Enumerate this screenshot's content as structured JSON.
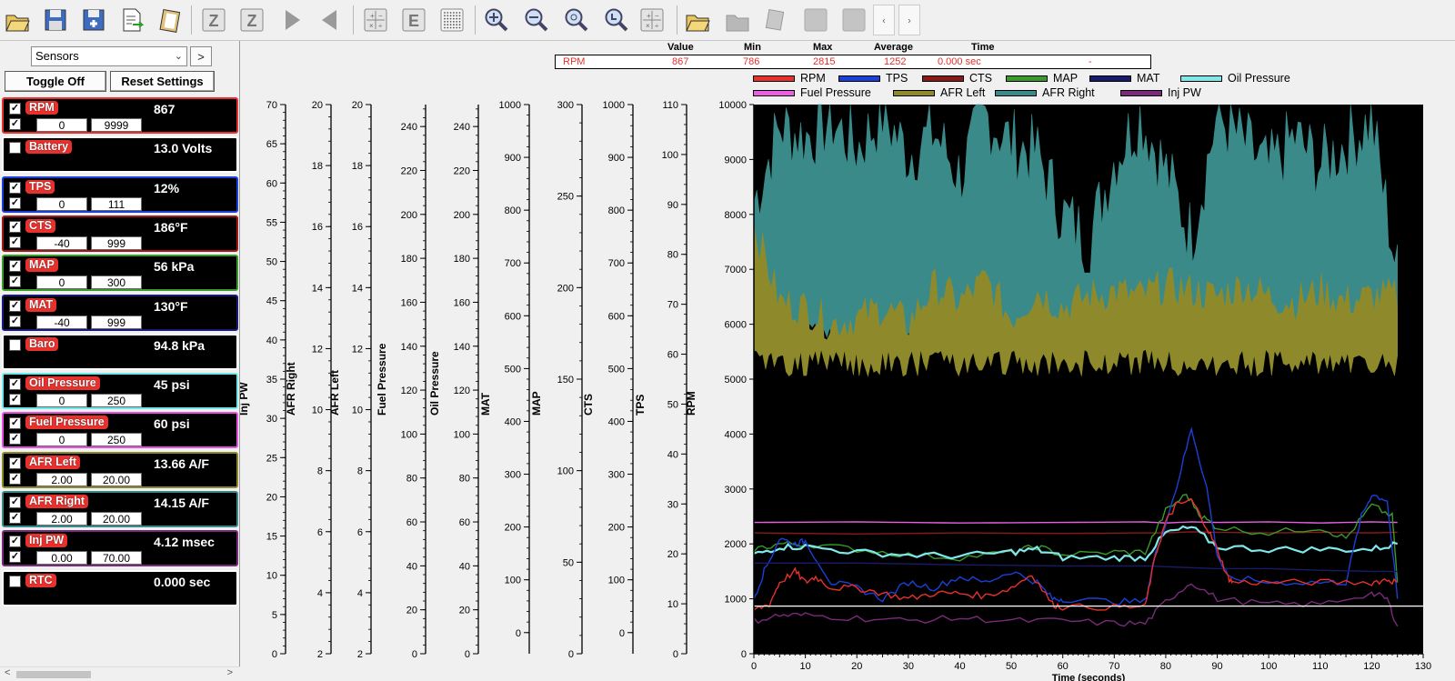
{
  "toolbar": {
    "buttons": [
      {
        "name": "open-folder-icon"
      },
      {
        "name": "save-icon"
      },
      {
        "name": "save-as-icon"
      },
      {
        "name": "export-icon"
      },
      {
        "name": "clipboard-icon"
      },
      {
        "name": "zoom-all-icon",
        "label": "Z"
      },
      {
        "name": "zoom-z-icon",
        "label": "Z"
      },
      {
        "name": "play-forward-icon"
      },
      {
        "name": "play-back-icon"
      },
      {
        "name": "calculator-icon"
      },
      {
        "name": "e-button-icon",
        "label": "E"
      },
      {
        "name": "dotted-grid-icon"
      },
      {
        "name": "zoom-in-icon"
      },
      {
        "name": "zoom-out-icon"
      },
      {
        "name": "zoom-reset-icon"
      },
      {
        "name": "zoom-lock-icon"
      },
      {
        "name": "table-icon"
      },
      {
        "name": "open-files-icon"
      },
      {
        "name": "disabled-folder-icon"
      },
      {
        "name": "disabled-copy-icon"
      },
      {
        "name": "disabled-square-icon"
      },
      {
        "name": "disabled-square2-icon"
      },
      {
        "name": "scroll-left-icon",
        "label": "‹"
      },
      {
        "name": "scroll-right-icon",
        "label": "›"
      }
    ]
  },
  "left_panel": {
    "select_value": "Sensors",
    "prev_label": "<",
    "next_label": ">",
    "toggle_off_label": "Toggle Off",
    "reset_settings_label": "Reset Settings",
    "sensors": [
      {
        "name": "RPM",
        "value": "867",
        "color": "#e8302c",
        "border": "#e8302c",
        "checked": true,
        "min": "0",
        "max": "9999"
      },
      {
        "name": "Battery",
        "value": "13.0 Volts",
        "color": "#e8302c",
        "border": "#ffffff",
        "checked": false
      },
      {
        "name": "TPS",
        "value": "12%",
        "color": "#e8302c",
        "border": "#1c3fd8",
        "checked": true,
        "min": "0",
        "max": "111"
      },
      {
        "name": "CTS",
        "value": "186°F",
        "color": "#e8302c",
        "border": "#a01818",
        "checked": true,
        "min": "-40",
        "max": "999"
      },
      {
        "name": "MAP",
        "value": "56 kPa",
        "color": "#e8302c",
        "border": "#3a9a2a",
        "checked": true,
        "min": "0",
        "max": "300"
      },
      {
        "name": "MAT",
        "value": "130°F",
        "color": "#e8302c",
        "border": "#1a1a7a",
        "checked": true,
        "min": "-40",
        "max": "999"
      },
      {
        "name": "Baro",
        "value": "94.8 kPa",
        "color": "#e8302c",
        "border": "#ffffff",
        "checked": false
      },
      {
        "name": "Oil Pressure",
        "value": "45 psi",
        "color": "#e8302c",
        "border": "#6ee8e8",
        "checked": true,
        "min": "0",
        "max": "250"
      },
      {
        "name": "Fuel Pressure",
        "value": "60 psi",
        "color": "#e8302c",
        "border": "#e850e0",
        "checked": true,
        "min": "0",
        "max": "250"
      },
      {
        "name": "AFR Left",
        "value": "13.66 A/F",
        "color": "#e8302c",
        "border": "#8e8a2c",
        "checked": true,
        "min": "2.00",
        "max": "20.00"
      },
      {
        "name": "AFR Right",
        "value": "14.15 A/F",
        "color": "#e8302c",
        "border": "#3a8a8a",
        "checked": true,
        "min": "2.00",
        "max": "20.00"
      },
      {
        "name": "Inj PW",
        "value": "4.12 msec",
        "color": "#e8302c",
        "border": "#7a2a7a",
        "checked": true,
        "min": "0.00",
        "max": "70.00"
      },
      {
        "name": "RTC",
        "value": "0.000 sec",
        "color": "#e8302c",
        "border": "#ffffff",
        "checked": false
      }
    ]
  },
  "stats": {
    "headers": {
      "value": "Value",
      "min": "Min",
      "max": "Max",
      "average": "Average",
      "time": "Time"
    },
    "row": {
      "name": "RPM",
      "value": "867",
      "min": "786",
      "max": "2815",
      "average": "1252",
      "time": "0.000 sec",
      "extra": "-"
    }
  },
  "legend": [
    {
      "label": "RPM",
      "color": "#e8302c"
    },
    {
      "label": "TPS",
      "color": "#1c3fd8"
    },
    {
      "label": "CTS",
      "color": "#8a1a1a"
    },
    {
      "label": "MAP",
      "color": "#3a9a2a"
    },
    {
      "label": "MAT",
      "color": "#1a1a6a"
    },
    {
      "label": "Oil Pressure",
      "color": "#7fe8e8"
    },
    {
      "label": "Fuel Pressure",
      "color": "#e860e0"
    },
    {
      "label": "AFR Left",
      "color": "#8e8a2c"
    },
    {
      "label": "AFR Right",
      "color": "#3a8a8a"
    },
    {
      "label": "Inj PW",
      "color": "#7a2a7a"
    }
  ],
  "chart_data": {
    "type": "line",
    "xlabel": "Time (seconds)",
    "xlim": [
      0,
      130
    ],
    "x_ticks": [
      "0",
      "10",
      "20",
      "30",
      "40",
      "50",
      "60",
      "70",
      "80",
      "90",
      "100",
      "110",
      "120",
      "130"
    ],
    "ylim": [
      0,
      10000
    ],
    "y_ticks": [
      "0",
      "1000",
      "2000",
      "3000",
      "4000",
      "5000",
      "6000",
      "7000",
      "8000",
      "9000",
      "10000"
    ],
    "axes": [
      {
        "label": "Inj PW",
        "min": 0,
        "max": 70,
        "ticks": [
          "0",
          "5",
          "10",
          "15",
          "20",
          "25",
          "30",
          "35",
          "40",
          "45",
          "50",
          "55",
          "60",
          "65",
          "70"
        ]
      },
      {
        "label": "AFR Right",
        "min": 2,
        "max": 20,
        "ticks": [
          "2",
          "4",
          "6",
          "8",
          "10",
          "12",
          "14",
          "16",
          "18",
          "20"
        ]
      },
      {
        "label": "AFR Left",
        "min": 2,
        "max": 20,
        "ticks": [
          "2",
          "4",
          "6",
          "8",
          "10",
          "12",
          "14",
          "16",
          "18",
          "20"
        ]
      },
      {
        "label": "Fuel Pressure",
        "min": 0,
        "max": 250,
        "ticks": [
          "0",
          "20",
          "40",
          "60",
          "80",
          "100",
          "120",
          "140",
          "160",
          "180",
          "200",
          "220",
          "240"
        ]
      },
      {
        "label": "Oil Pressure",
        "min": 0,
        "max": 250,
        "ticks": [
          "0",
          "20",
          "40",
          "60",
          "80",
          "100",
          "120",
          "140",
          "160",
          "180",
          "200",
          "220",
          "240"
        ]
      },
      {
        "label": "MAT",
        "min": -40,
        "max": 1000,
        "ticks": [
          "0",
          "100",
          "200",
          "300",
          "400",
          "500",
          "600",
          "700",
          "800",
          "900",
          "1000"
        ]
      },
      {
        "label": "MAP",
        "min": 0,
        "max": 300,
        "ticks": [
          "0",
          "50",
          "100",
          "150",
          "200",
          "250",
          "300"
        ]
      },
      {
        "label": "CTS",
        "min": -40,
        "max": 1000,
        "ticks": [
          "0",
          "100",
          "200",
          "300",
          "400",
          "500",
          "600",
          "700",
          "800",
          "900",
          "1000"
        ]
      },
      {
        "label": "TPS",
        "min": 0,
        "max": 110,
        "ticks": [
          "0",
          "10",
          "20",
          "30",
          "40",
          "50",
          "60",
          "70",
          "80",
          "90",
          "100",
          "110"
        ]
      },
      {
        "label": "RPM",
        "min": 0,
        "max": 10000,
        "ticks": [
          "0",
          "1000",
          "2000",
          "3000",
          "4000",
          "5000",
          "6000",
          "7000",
          "8000",
          "9000",
          "10000"
        ]
      }
    ],
    "series": [
      {
        "name": "AFR Right",
        "color": "#3a8a8a",
        "fill": true,
        "x": [
          0,
          5,
          10,
          15,
          20,
          25,
          30,
          35,
          40,
          45,
          50,
          55,
          60,
          65,
          70,
          75,
          80,
          85,
          90,
          95,
          100,
          105,
          110,
          115,
          120,
          125
        ],
        "y": [
          8200,
          9600,
          9400,
          9700,
          9200,
          9800,
          9100,
          9500,
          8700,
          9800,
          9300,
          9100,
          8000,
          7500,
          9000,
          9800,
          8800,
          7600,
          9800,
          9300,
          8800,
          9400,
          8900,
          9300,
          9700,
          6900
        ]
      },
      {
        "name": "AFR Left",
        "color": "#8e8a2c",
        "fill": true,
        "x": [
          0,
          5,
          10,
          15,
          20,
          25,
          30,
          35,
          40,
          45,
          50,
          55,
          60,
          65,
          70,
          75,
          80,
          85,
          90,
          95,
          100,
          105,
          110,
          115,
          120,
          125
        ],
        "y": [
          7800,
          6400,
          6300,
          6000,
          6100,
          6300,
          6000,
          6700,
          6400,
          6800,
          6100,
          6600,
          6300,
          6500,
          6600,
          6500,
          6700,
          6600,
          6500,
          6700,
          6500,
          6400,
          6600,
          6400,
          6500,
          6500
        ]
      },
      {
        "name": "Fuel Pressure",
        "color": "#e860e0",
        "x": [
          0,
          20,
          40,
          60,
          76,
          80,
          85,
          90,
          100,
          110,
          120,
          125
        ],
        "y": [
          2390,
          2400,
          2380,
          2390,
          2400,
          2380,
          2400,
          2390,
          2400,
          2380,
          2400,
          2390
        ]
      },
      {
        "name": "CTS",
        "color": "#8a1a1a",
        "x": [
          0,
          20,
          40,
          60,
          76,
          80,
          85,
          90,
          100,
          110,
          120,
          125
        ],
        "y": [
          2200,
          2180,
          2200,
          2190,
          2200,
          2200,
          2220,
          2210,
          2200,
          2210,
          2200,
          2210
        ]
      },
      {
        "name": "MAP",
        "color": "#3a9a2a",
        "x": [
          0,
          5,
          10,
          20,
          30,
          40,
          50,
          55,
          60,
          70,
          76,
          80,
          84,
          87,
          90,
          100,
          110,
          115,
          120,
          124,
          125
        ],
        "y": [
          1900,
          2000,
          2000,
          1900,
          1800,
          1750,
          1850,
          1950,
          1800,
          1850,
          1850,
          2600,
          2900,
          2500,
          2300,
          2200,
          2300,
          2100,
          2700,
          2500,
          1300
        ]
      },
      {
        "name": "Oil Pressure",
        "color": "#7fe8e8",
        "x": [
          0,
          5,
          10,
          20,
          30,
          40,
          50,
          55,
          60,
          70,
          76,
          80,
          85,
          90,
          100,
          110,
          120,
          125
        ],
        "y": [
          1800,
          1950,
          1950,
          1850,
          1800,
          1780,
          1850,
          1900,
          1750,
          1750,
          1750,
          2200,
          2300,
          1950,
          1900,
          1900,
          1900,
          2000
        ]
      },
      {
        "name": "TPS",
        "color": "#1c3fd8",
        "x": [
          0,
          2,
          5,
          8,
          10,
          15,
          20,
          25,
          30,
          35,
          40,
          45,
          50,
          55,
          58,
          60,
          70,
          76,
          78,
          82,
          85,
          88,
          90,
          92,
          100,
          110,
          115,
          118,
          120,
          123,
          125
        ],
        "y": [
          1000,
          1500,
          2100,
          2000,
          2050,
          1300,
          1200,
          1000,
          1300,
          1200,
          1400,
          1300,
          1500,
          1300,
          1000,
          1000,
          950,
          950,
          1800,
          3000,
          4100,
          3000,
          1800,
          1400,
          1300,
          1300,
          1300,
          2500,
          2900,
          2800,
          1000
        ]
      },
      {
        "name": "MAT",
        "color": "#1a1a6a",
        "x": [
          0,
          20,
          40,
          60,
          76,
          90,
          100,
          110,
          120,
          125
        ],
        "y": [
          1650,
          1650,
          1620,
          1600,
          1600,
          1550,
          1550,
          1520,
          1500,
          1500
        ]
      },
      {
        "name": "RPM",
        "color": "#e8302c",
        "x": [
          0,
          3,
          5,
          8,
          10,
          12,
          15,
          20,
          25,
          30,
          35,
          40,
          45,
          50,
          54,
          58,
          60,
          70,
          76,
          78,
          80,
          82,
          85,
          88,
          90,
          92,
          93,
          100,
          110,
          120,
          123,
          125
        ],
        "y": [
          800,
          900,
          1300,
          1500,
          1300,
          1400,
          1200,
          1200,
          1100,
          1000,
          1100,
          1100,
          1050,
          1200,
          1450,
          900,
          850,
          850,
          850,
          1800,
          2400,
          2700,
          2800,
          2300,
          1900,
          1400,
          1300,
          1300,
          1300,
          1300,
          1350,
          1300
        ]
      },
      {
        "name": "Inj PW",
        "color": "#7a2a7a",
        "x": [
          0,
          5,
          10,
          20,
          30,
          40,
          50,
          60,
          70,
          76,
          80,
          85,
          90,
          100,
          110,
          120,
          123,
          125
        ],
        "y": [
          600,
          700,
          700,
          650,
          600,
          650,
          600,
          600,
          550,
          550,
          950,
          1300,
          1000,
          900,
          900,
          1100,
          1000,
          500
        ]
      }
    ],
    "reference_line": {
      "name": "RPM current",
      "value": 867,
      "color": "#ffffff"
    }
  }
}
